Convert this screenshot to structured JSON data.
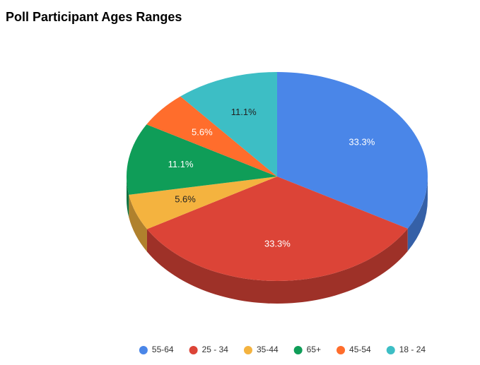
{
  "chart_data": {
    "type": "pie3d",
    "title": "Poll Participant Ages Ranges",
    "categories": [
      "55-64",
      "25 - 34",
      "35-44",
      "65+",
      "45-54",
      "18 - 24"
    ],
    "values": [
      33.3,
      33.3,
      5.6,
      11.1,
      5.6,
      11.1
    ],
    "value_labels": [
      "33.3%",
      "33.3%",
      "5.6%",
      "11.1%",
      "5.6%",
      "11.1%"
    ],
    "colors": [
      "#4a86e8",
      "#dc4437",
      "#f4b33f",
      "#0f9d58",
      "#ff6d2c",
      "#3dbec5"
    ],
    "legend": "bottom"
  }
}
